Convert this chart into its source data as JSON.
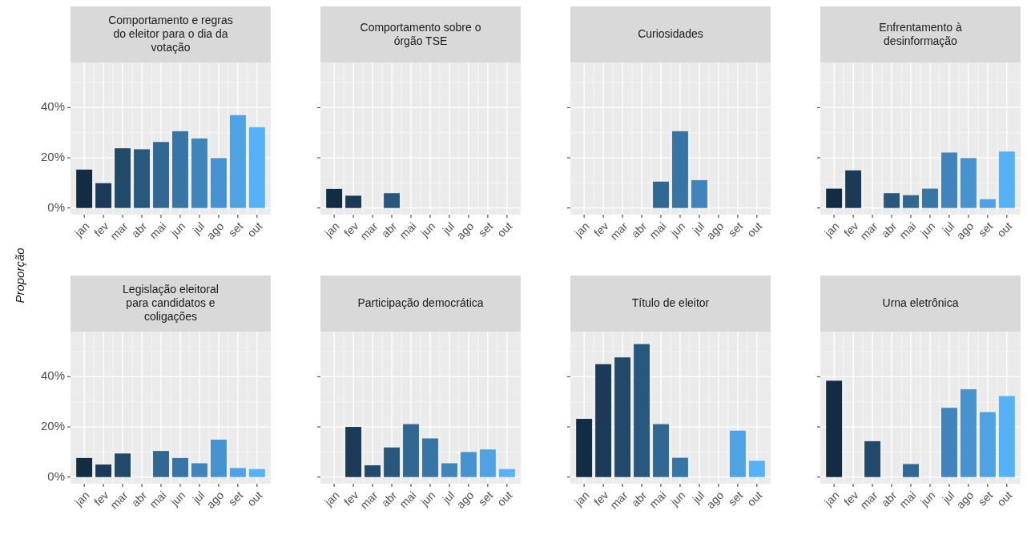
{
  "chart_data": [
    {
      "type": "bar",
      "title": "Comportamento e regras\ndo eleitor para o dia da\nvotação",
      "ylabel": "Proporção",
      "categories": [
        "jan",
        "fev",
        "mar",
        "abr",
        "mai",
        "jun",
        "jul",
        "ago",
        "set",
        "out"
      ],
      "values": [
        15.3,
        9.9,
        23.8,
        23.4,
        26.3,
        30.6,
        27.7,
        19.9,
        37.0,
        32.2
      ],
      "colors": [
        "#132b43",
        "#1a3a57",
        "#224967",
        "#29587f",
        "#316793",
        "#3875a7",
        "#4084bb",
        "#4793cf",
        "#4fa2e3",
        "#56b1f7"
      ],
      "ylim": [
        -2.65,
        58
      ],
      "yticks": [
        {
          "value": 0,
          "label": "0%"
        },
        {
          "value": 20,
          "label": "20%"
        },
        {
          "value": 40,
          "label": "40%"
        }
      ],
      "grid": true
    },
    {
      "type": "bar",
      "title": "Comportamento sobre o\nórgão TSE",
      "categories": [
        "jan",
        "fev",
        "mar",
        "abr",
        "mai",
        "jun",
        "jul",
        "ago",
        "set",
        "out"
      ],
      "values": [
        7.6,
        4.9,
        null,
        5.9,
        null,
        null,
        null,
        null,
        null,
        null
      ],
      "colors": [
        "#132b43",
        "#1a3a57",
        null,
        "#29587f",
        null,
        null,
        null,
        null,
        null,
        null
      ],
      "ylim": [
        -2.65,
        58
      ],
      "yticks": [
        {
          "value": 0,
          "label": null
        },
        {
          "value": 20,
          "label": null
        },
        {
          "value": 40,
          "label": null
        }
      ],
      "grid": true,
      "tick_labels": "x"
    },
    {
      "type": "bar",
      "title": "Curiosidades",
      "categories": [
        "jan",
        "fev",
        "mar",
        "abr",
        "mai",
        "jun",
        "jul",
        "ago",
        "set",
        "out"
      ],
      "values": [
        null,
        null,
        null,
        null,
        10.5,
        30.6,
        11.1,
        null,
        null,
        null
      ],
      "colors": [
        null,
        null,
        null,
        null,
        "#316793",
        "#3875a7",
        "#4084bb",
        null,
        null,
        null
      ],
      "ylim": [
        -2.65,
        58
      ],
      "yticks": [
        {
          "value": 0,
          "label": null
        },
        {
          "value": 20,
          "label": null
        },
        {
          "value": 40,
          "label": null
        }
      ],
      "grid": true,
      "tick_labels": "x"
    },
    {
      "type": "bar",
      "title": "Enfrentamento à\ndesinformação",
      "categories": [
        "jan",
        "fev",
        "mar",
        "abr",
        "mai",
        "jun",
        "jul",
        "ago",
        "set",
        "out"
      ],
      "values": [
        7.7,
        15.0,
        null,
        5.9,
        5.1,
        7.7,
        22.1,
        19.9,
        3.5,
        22.5
      ],
      "colors": [
        "#132b43",
        "#1a3a57",
        null,
        "#29587f",
        "#316793",
        "#3875a7",
        "#4084bb",
        "#4793cf",
        "#4fa2e3",
        "#56b1f7"
      ],
      "ylim": [
        -2.65,
        58
      ],
      "yticks": [
        {
          "value": 0,
          "label": null
        },
        {
          "value": 20,
          "label": null
        },
        {
          "value": 40,
          "label": null
        }
      ],
      "grid": true,
      "tick_labels": "x"
    },
    {
      "type": "bar",
      "title": "Legislação eleitoral\npara candidatos e\ncoligações",
      "categories": [
        "jan",
        "fev",
        "mar",
        "abr",
        "mai",
        "jun",
        "jul",
        "ago",
        "set",
        "out"
      ],
      "values": [
        7.6,
        5.0,
        9.4,
        null,
        10.4,
        7.6,
        5.5,
        14.9,
        3.6,
        3.2
      ],
      "colors": [
        "#132b43",
        "#1a3a57",
        "#224967",
        null,
        "#316793",
        "#3875a7",
        "#4084bb",
        "#4793cf",
        "#4fa2e3",
        "#56b1f7"
      ],
      "ylim": [
        -2.65,
        58
      ],
      "yticks": [
        {
          "value": 0,
          "label": "0%"
        },
        {
          "value": 20,
          "label": "20%"
        },
        {
          "value": 40,
          "label": "40%"
        }
      ],
      "grid": true
    },
    {
      "type": "bar",
      "title": "Participação democrática",
      "categories": [
        "jan",
        "fev",
        "mar",
        "abr",
        "mai",
        "jun",
        "jul",
        "ago",
        "set",
        "out"
      ],
      "values": [
        null,
        20.0,
        4.7,
        11.8,
        21.1,
        15.4,
        5.5,
        10.0,
        11.0,
        3.2
      ],
      "colors": [
        null,
        "#1a3a57",
        "#224967",
        "#29587f",
        "#316793",
        "#3875a7",
        "#4084bb",
        "#4793cf",
        "#4fa2e3",
        "#56b1f7"
      ],
      "ylim": [
        -2.65,
        58
      ],
      "yticks": [
        {
          "value": 0,
          "label": null
        },
        {
          "value": 20,
          "label": null
        },
        {
          "value": 40,
          "label": null
        }
      ],
      "grid": true,
      "tick_labels": "x"
    },
    {
      "type": "bar",
      "title": "Título de eleitor",
      "categories": [
        "jan",
        "fev",
        "mar",
        "abr",
        "mai",
        "jun",
        "jul",
        "ago",
        "set",
        "out"
      ],
      "values": [
        23.2,
        45.0,
        47.7,
        53.0,
        21.1,
        7.7,
        null,
        null,
        18.5,
        6.5
      ],
      "colors": [
        "#132b43",
        "#1a3a57",
        "#224967",
        "#29587f",
        "#316793",
        "#3875a7",
        null,
        null,
        "#4fa2e3",
        "#56b1f7"
      ],
      "ylim": [
        -2.65,
        58
      ],
      "yticks": [
        {
          "value": 0,
          "label": null
        },
        {
          "value": 20,
          "label": null
        },
        {
          "value": 40,
          "label": null
        }
      ],
      "grid": true,
      "tick_labels": "x"
    },
    {
      "type": "bar",
      "title": "Urna eletrônica",
      "categories": [
        "jan",
        "fev",
        "mar",
        "abr",
        "mai",
        "jun",
        "jul",
        "ago",
        "set",
        "out"
      ],
      "values": [
        38.4,
        null,
        14.3,
        null,
        5.2,
        null,
        27.6,
        35.0,
        25.9,
        32.3
      ],
      "colors": [
        "#132b43",
        null,
        "#224967",
        null,
        "#316793",
        null,
        "#4084bb",
        "#4793cf",
        "#4fa2e3",
        "#56b1f7"
      ],
      "ylim": [
        -2.65,
        58
      ],
      "yticks": [
        {
          "value": 0,
          "label": null
        },
        {
          "value": 20,
          "label": null
        },
        {
          "value": 40,
          "label": null
        }
      ],
      "grid": true,
      "tick_labels": "x"
    }
  ]
}
